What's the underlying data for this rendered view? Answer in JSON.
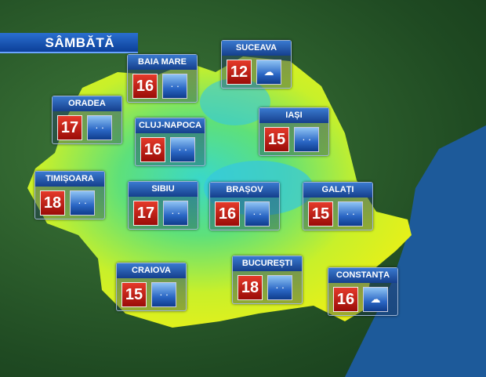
{
  "title": "SÂMBĂTĂ",
  "colors": {
    "temp_box": "#c61a12",
    "icon_box": "#2a66c4",
    "header": "#1f55b0"
  },
  "cities": [
    {
      "name": "BAIA MARE",
      "temp": "16",
      "icon": "rain-icon"
    },
    {
      "name": "SUCEAVA",
      "temp": "12",
      "icon": "sun-cloud-rain-icon"
    },
    {
      "name": "ORADEA",
      "temp": "17",
      "icon": "rain-icon"
    },
    {
      "name": "CLUJ-NAPOCA",
      "temp": "16",
      "icon": "rain-icon"
    },
    {
      "name": "IAȘI",
      "temp": "15",
      "icon": "rain-icon"
    },
    {
      "name": "TIMIȘOARA",
      "temp": "18",
      "icon": "rain-icon"
    },
    {
      "name": "SIBIU",
      "temp": "17",
      "icon": "rain-icon"
    },
    {
      "name": "BRAȘOV",
      "temp": "16",
      "icon": "rain-icon"
    },
    {
      "name": "GALAȚI",
      "temp": "15",
      "icon": "rain-icon"
    },
    {
      "name": "CRAIOVA",
      "temp": "15",
      "icon": "rain-icon"
    },
    {
      "name": "BUCUREȘTI",
      "temp": "18",
      "icon": "rain-icon"
    },
    {
      "name": "CONSTANȚA",
      "temp": "16",
      "icon": "sun-cloud-rain-icon"
    }
  ]
}
